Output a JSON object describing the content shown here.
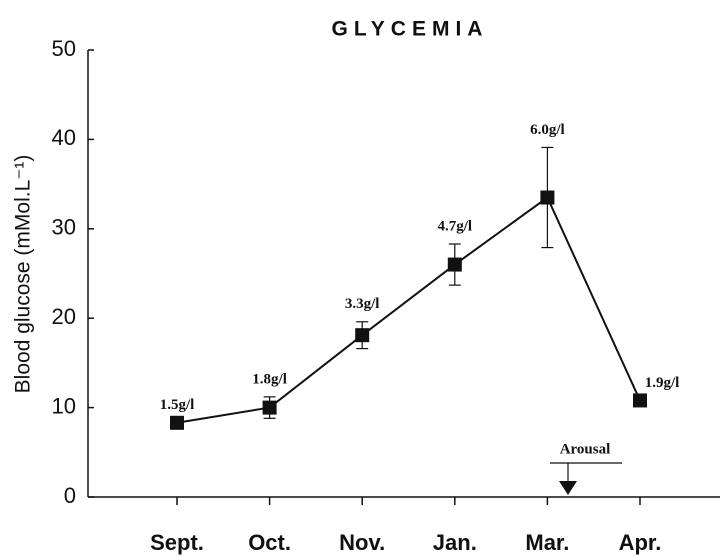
{
  "chart_data": {
    "type": "line",
    "title": "GLYCEMIA",
    "y_label": "Blood glucose (mMol.L⁻¹)",
    "categories": [
      "Sept.",
      "Oct.",
      "Nov.",
      "Jan.",
      "Mar.",
      "Apr."
    ],
    "series": [
      {
        "color": "#111111",
        "values": [
          8.3,
          10.0,
          18.1,
          26.0,
          33.5,
          10.8
        ],
        "errors": [
          null,
          1.2,
          1.5,
          2.3,
          5.6,
          null
        ]
      }
    ],
    "point_annotations": [
      "1.5g/l",
      "1.8g/l",
      "3.3g/l",
      "4.7g/l",
      "6.0g/l",
      "1.9g/l"
    ],
    "event_annotation": "Arousal",
    "ylim": [
      0,
      50
    ],
    "yticks": [
      0,
      10,
      20,
      30,
      40,
      50
    ]
  }
}
